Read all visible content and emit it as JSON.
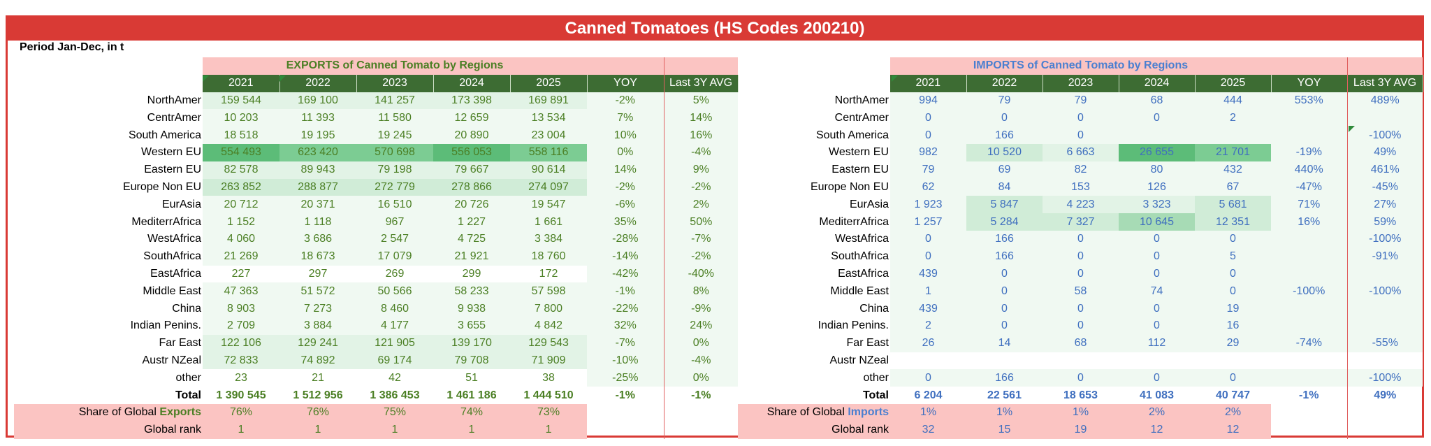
{
  "title": "Canned Tomatoes (HS Codes 200210)",
  "period": "Period Jan-Dec, in t",
  "columns": [
    "2021",
    "2022",
    "2023",
    "2024",
    "2025",
    "YOY",
    "Last 3Y AVG"
  ],
  "exports": {
    "caption": "EXPORTS of Canned Tomato by Regions",
    "rows": [
      {
        "label": "NorthAmer",
        "v": [
          "159 544",
          "169 100",
          "141 257",
          "173 398",
          "169 891",
          "-2%",
          "5%"
        ]
      },
      {
        "label": "CentrAmer",
        "v": [
          "10 203",
          "11 393",
          "11 580",
          "12 659",
          "13 534",
          "7%",
          "14%"
        ]
      },
      {
        "label": "South America",
        "v": [
          "18 518",
          "19 195",
          "19 245",
          "20 890",
          "23 004",
          "10%",
          "16%"
        ]
      },
      {
        "label": "Western EU",
        "v": [
          "554 493",
          "623 420",
          "570 698",
          "556 053",
          "558 116",
          "0%",
          "-4%"
        ]
      },
      {
        "label": "Eastern EU",
        "v": [
          "82 578",
          "89 943",
          "79 198",
          "79 667",
          "90 614",
          "14%",
          "9%"
        ]
      },
      {
        "label": "Europe Non EU",
        "v": [
          "263 852",
          "288 877",
          "272 779",
          "278 866",
          "274 097",
          "-2%",
          "-2%"
        ]
      },
      {
        "label": "EurAsia",
        "v": [
          "20 712",
          "20 371",
          "16 510",
          "20 726",
          "19 547",
          "-6%",
          "2%"
        ]
      },
      {
        "label": "MediterrAfrica",
        "v": [
          "1 152",
          "1 118",
          "967",
          "1 227",
          "1 661",
          "35%",
          "50%"
        ]
      },
      {
        "label": "WestAfrica",
        "v": [
          "4 060",
          "3 686",
          "2 547",
          "4 725",
          "3 384",
          "-28%",
          "-7%"
        ]
      },
      {
        "label": "SouthAfrica",
        "v": [
          "21 269",
          "18 673",
          "17 079",
          "21 921",
          "18 760",
          "-14%",
          "-2%"
        ]
      },
      {
        "label": "EastAfrica",
        "v": [
          "227",
          "297",
          "269",
          "299",
          "172",
          "-42%",
          "-40%"
        ]
      },
      {
        "label": "Middle East",
        "v": [
          "47 363",
          "51 572",
          "50 566",
          "58 233",
          "57 598",
          "-1%",
          "8%"
        ]
      },
      {
        "label": "China",
        "v": [
          "8 903",
          "7 273",
          "8 460",
          "9 938",
          "7 800",
          "-22%",
          "-9%"
        ]
      },
      {
        "label": "Indian Penins.",
        "v": [
          "2 709",
          "3 884",
          "4 177",
          "3 655",
          "4 842",
          "32%",
          "24%"
        ]
      },
      {
        "label": "Far East",
        "v": [
          "122 106",
          "129 241",
          "121 905",
          "139 170",
          "129 543",
          "-7%",
          "0%"
        ]
      },
      {
        "label": "Austr NZeal",
        "v": [
          "72 833",
          "74 892",
          "69 174",
          "79 708",
          "71 909",
          "-10%",
          "-4%"
        ]
      },
      {
        "label": "other",
        "v": [
          "23",
          "21",
          "42",
          "51",
          "38",
          "-25%",
          "0%"
        ]
      }
    ],
    "total": {
      "label": "Total",
      "v": [
        "1 390 545",
        "1 512 956",
        "1 386 453",
        "1 461 186",
        "1 444 510",
        "-1%",
        "-1%"
      ]
    },
    "share": {
      "label_prefix": "Share of Global ",
      "label_word": "Exports",
      "v": [
        "76%",
        "76%",
        "75%",
        "74%",
        "73%"
      ]
    },
    "rank": {
      "label": "Global rank",
      "v": [
        "1",
        "1",
        "1",
        "1",
        "1"
      ]
    }
  },
  "imports": {
    "caption": "IMPORTS of Canned Tomato by Regions",
    "rows": [
      {
        "label": "NorthAmer",
        "v": [
          "994",
          "79",
          "79",
          "68",
          "444",
          "553%",
          "489%"
        ]
      },
      {
        "label": "CentrAmer",
        "v": [
          "0",
          "0",
          "0",
          "0",
          "2",
          "",
          ""
        ]
      },
      {
        "label": "South America",
        "v": [
          "0",
          "166",
          "0",
          "",
          "",
          "",
          "-100%"
        ]
      },
      {
        "label": "Western EU",
        "v": [
          "982",
          "10 520",
          "6 663",
          "26 655",
          "21 701",
          "-19%",
          "49%"
        ]
      },
      {
        "label": "Eastern EU",
        "v": [
          "79",
          "69",
          "82",
          "80",
          "432",
          "440%",
          "461%"
        ]
      },
      {
        "label": "Europe Non EU",
        "v": [
          "62",
          "84",
          "153",
          "126",
          "67",
          "-47%",
          "-45%"
        ]
      },
      {
        "label": "EurAsia",
        "v": [
          "1 923",
          "5 847",
          "4 223",
          "3 323",
          "5 681",
          "71%",
          "27%"
        ]
      },
      {
        "label": "MediterrAfrica",
        "v": [
          "1 257",
          "5 284",
          "7 327",
          "10 645",
          "12 351",
          "16%",
          "59%"
        ]
      },
      {
        "label": "WestAfrica",
        "v": [
          "0",
          "166",
          "0",
          "0",
          "0",
          "",
          "-100%"
        ]
      },
      {
        "label": "SouthAfrica",
        "v": [
          "0",
          "166",
          "0",
          "0",
          "5",
          "",
          "-91%"
        ]
      },
      {
        "label": "EastAfrica",
        "v": [
          "439",
          "0",
          "0",
          "0",
          "0",
          "",
          ""
        ]
      },
      {
        "label": "Middle East",
        "v": [
          "1",
          "0",
          "58",
          "74",
          "0",
          "-100%",
          "-100%"
        ]
      },
      {
        "label": "China",
        "v": [
          "439",
          "0",
          "0",
          "0",
          "19",
          "",
          ""
        ]
      },
      {
        "label": "Indian Penins.",
        "v": [
          "2",
          "0",
          "0",
          "0",
          "16",
          "",
          ""
        ]
      },
      {
        "label": "Far East",
        "v": [
          "26",
          "14",
          "68",
          "112",
          "29",
          "-74%",
          "-55%"
        ]
      },
      {
        "label": "Austr NZeal",
        "v": [
          "",
          "",
          "",
          "",
          "",
          "",
          ""
        ]
      },
      {
        "label": "other",
        "v": [
          "0",
          "166",
          "0",
          "0",
          "0",
          "",
          "-100%"
        ]
      }
    ],
    "total": {
      "label": "Total",
      "v": [
        "6 204",
        "22 561",
        "18 653",
        "41 083",
        "40 747",
        "-1%",
        "49%"
      ]
    },
    "share": {
      "label_prefix": "Share of Global ",
      "label_word": "Imports",
      "v": [
        "1%",
        "1%",
        "1%",
        "2%",
        "2%"
      ]
    },
    "rank": {
      "label": "Global rank",
      "v": [
        "32",
        "15",
        "19",
        "12",
        "12"
      ]
    }
  },
  "colors": {
    "header_bg": "#3d6c33",
    "caption_bg": "#fbc4c2",
    "title_bg": "#d93a35",
    "export_text": "#4b7f24",
    "import_text": "#3f6fbf"
  }
}
